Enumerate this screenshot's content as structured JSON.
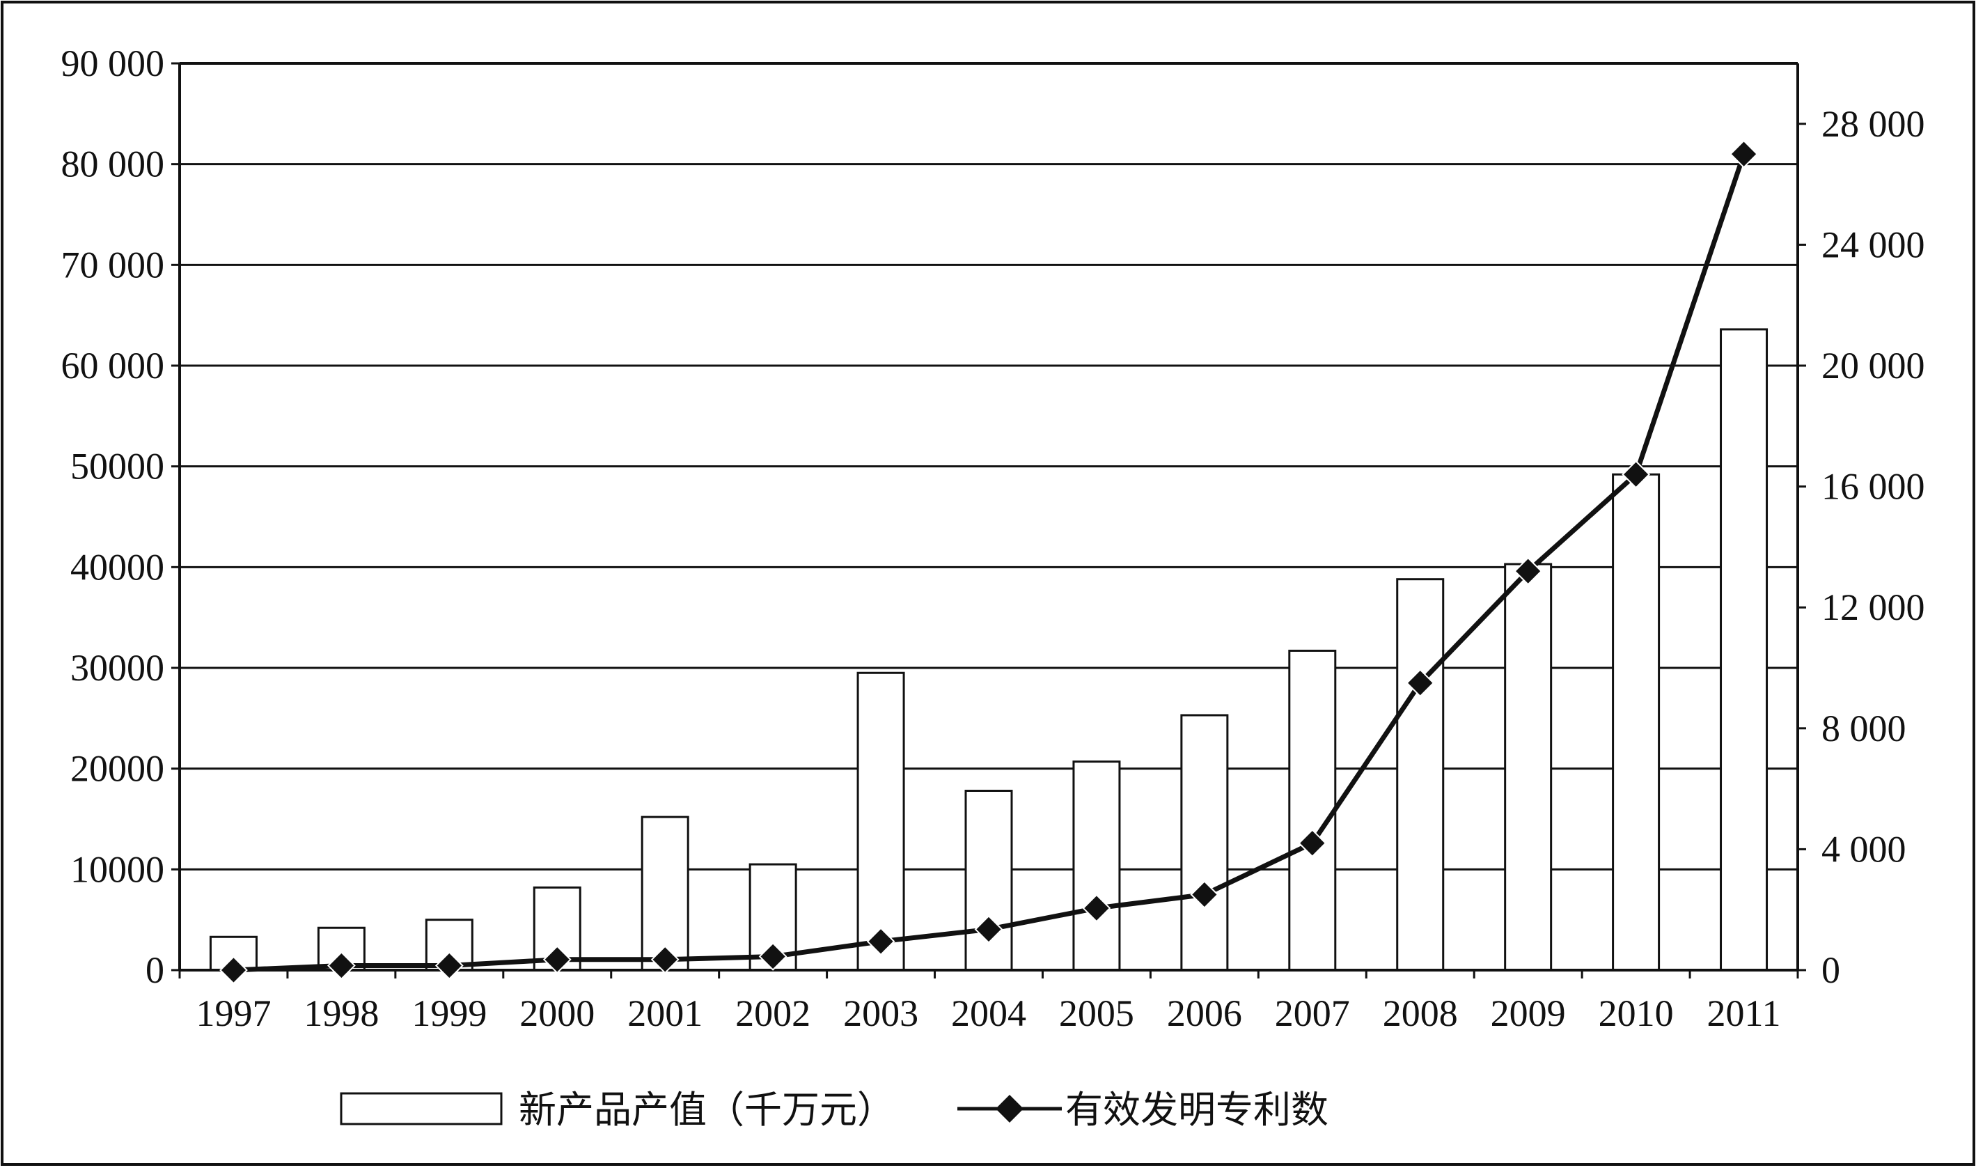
{
  "chart_data": {
    "type": "bar+line",
    "categories": [
      "1997",
      "1998",
      "1999",
      "2000",
      "2001",
      "2002",
      "2003",
      "2004",
      "2005",
      "2006",
      "2007",
      "2008",
      "2009",
      "2010",
      "2011"
    ],
    "series": [
      {
        "name": "新产品产值（千万元）",
        "type": "bar",
        "axis": "left",
        "values": [
          3300,
          4200,
          5000,
          8200,
          15200,
          10500,
          29500,
          17800,
          20700,
          25300,
          31700,
          38800,
          40300,
          49200,
          63600
        ]
      },
      {
        "name": "有效发明专利数",
        "type": "line",
        "axis": "right",
        "values": [
          0,
          150,
          150,
          350,
          350,
          450,
          950,
          1350,
          2050,
          2500,
          4200,
          9500,
          13200,
          16400,
          27000
        ]
      }
    ],
    "left_axis": {
      "ylim": [
        0,
        90000
      ],
      "ticks": [
        0,
        10000,
        20000,
        30000,
        40000,
        50000,
        60000,
        70000,
        80000,
        90000
      ],
      "tick_labels": [
        "0",
        "10000",
        "20000",
        "30000",
        "40000",
        "50000",
        "60 000",
        "70 000",
        "80 000",
        "90 000"
      ]
    },
    "right_axis": {
      "ylim": [
        0,
        30000
      ],
      "ticks": [
        0,
        4000,
        8000,
        12000,
        16000,
        20000,
        24000,
        28000
      ],
      "tick_labels": [
        "0",
        "4 000",
        "8 000",
        "12 000",
        "16 000",
        "20 000",
        "24 000",
        "28 000"
      ]
    },
    "grid": true,
    "legend": {
      "position": "bottom",
      "items": [
        "新产品产值（千万元）",
        "有效发明专利数"
      ]
    },
    "colors": {
      "bar_fill": "#ffffff",
      "stroke": "#111111",
      "line": "#111111",
      "marker": "#111111"
    }
  }
}
